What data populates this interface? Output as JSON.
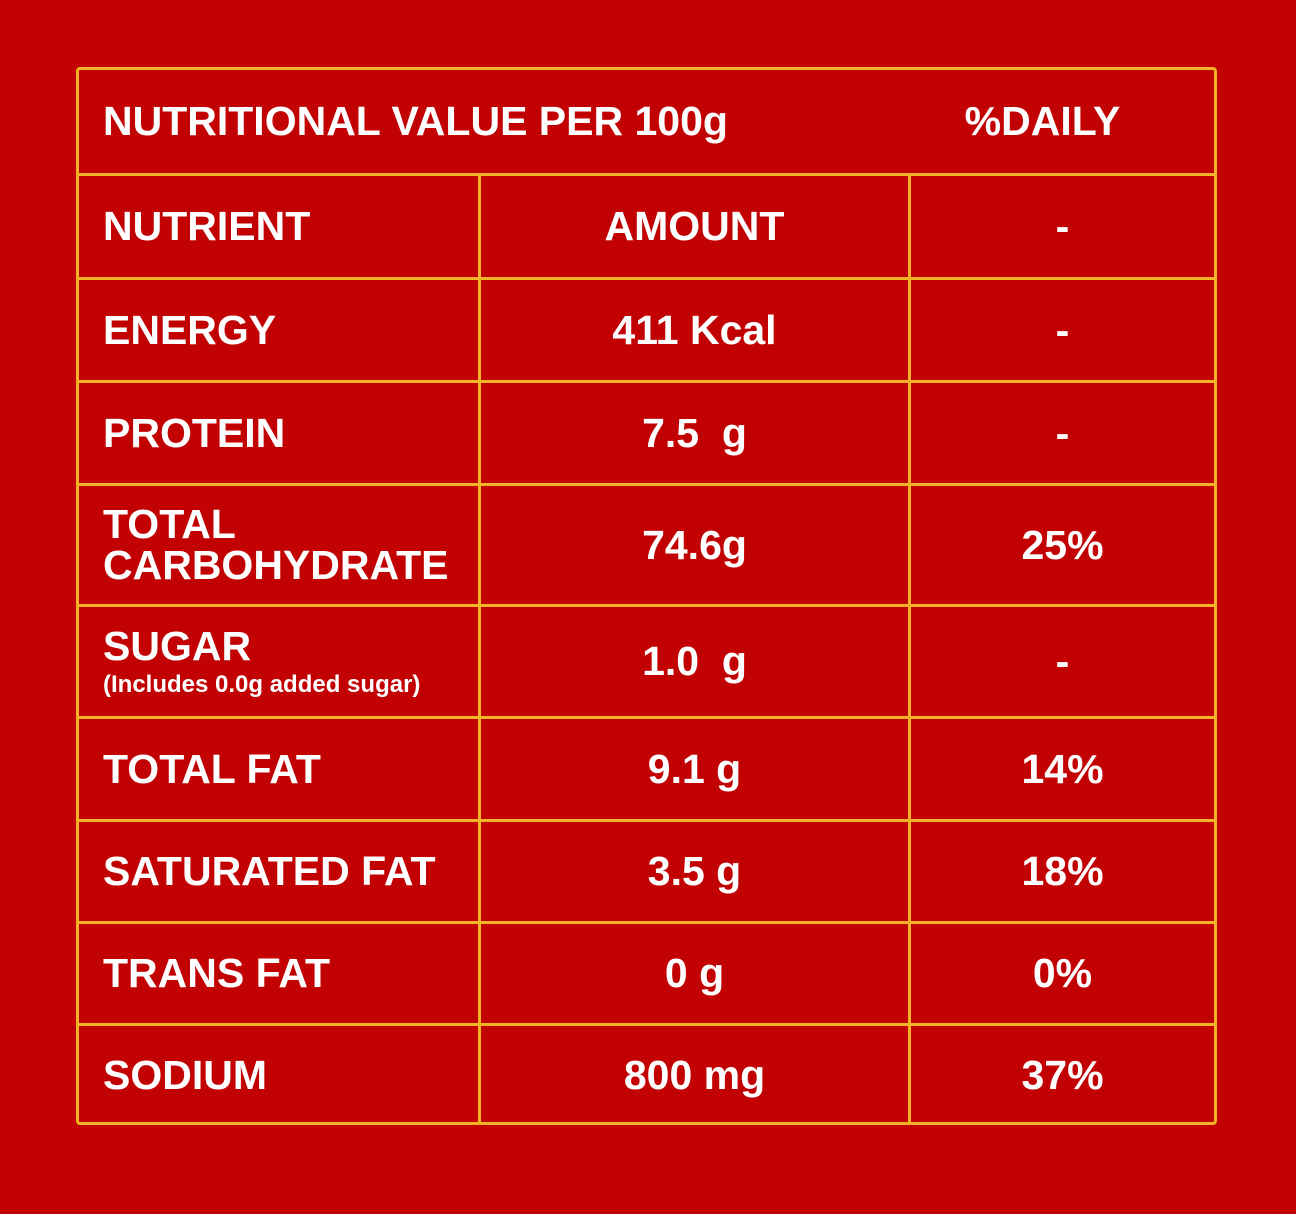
{
  "header": {
    "title": "NUTRITIONAL VALUE PER 100g",
    "daily": "%DAILY"
  },
  "rows": [
    {
      "nutrient": "NUTRIENT",
      "amount": "AMOUNT",
      "daily": "-"
    },
    {
      "nutrient": "ENERGY",
      "amount": "411 Kcal",
      "daily": "-"
    },
    {
      "nutrient": "PROTEIN",
      "amount": "7.5  g",
      "daily": "-"
    },
    {
      "nutrient": "TOTAL CARBOHYDRATE",
      "amount": "74.6g",
      "daily": "25%"
    },
    {
      "nutrient": "SUGAR",
      "note": "(Includes 0.0g added sugar)",
      "amount": "1.0  g",
      "daily": "-"
    },
    {
      "nutrient": "TOTAL FAT",
      "amount": "9.1 g",
      "daily": "14%"
    },
    {
      "nutrient": "SATURATED FAT",
      "amount": "3.5 g",
      "daily": "18%"
    },
    {
      "nutrient": "TRANS FAT",
      "amount": "0 g",
      "daily": "0%"
    },
    {
      "nutrient": "SODIUM",
      "amount": "800 mg",
      "daily": "37%"
    }
  ]
}
